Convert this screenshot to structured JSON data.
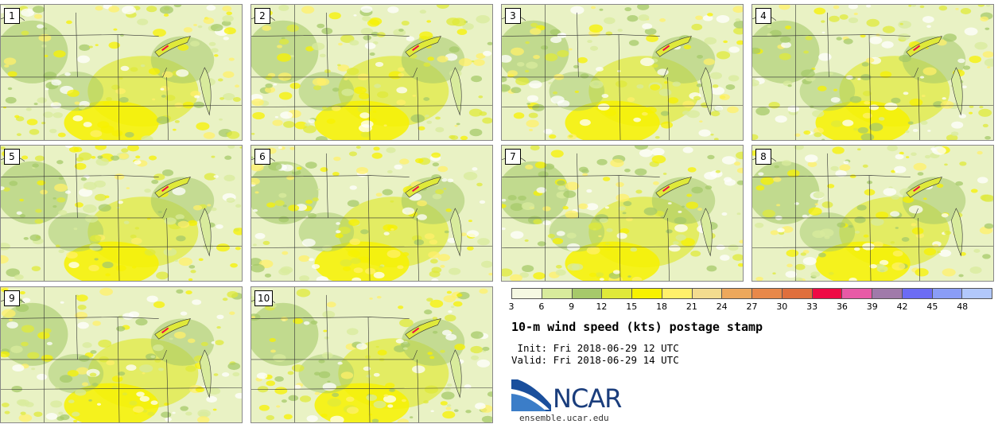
{
  "panels": [
    {
      "label": "1"
    },
    {
      "label": "2"
    },
    {
      "label": "3"
    },
    {
      "label": "4"
    },
    {
      "label": "5"
    },
    {
      "label": "6"
    },
    {
      "label": "7"
    },
    {
      "label": "8"
    },
    {
      "label": "9"
    },
    {
      "label": "10"
    }
  ],
  "legend": {
    "ticks": [
      "3",
      "6",
      "9",
      "12",
      "15",
      "18",
      "21",
      "24",
      "27",
      "30",
      "33",
      "36",
      "39",
      "42",
      "45",
      "48"
    ],
    "colors": [
      "#f5f8e2",
      "#d8eb9c",
      "#a6c96a",
      "#dfe93a",
      "#f7f200",
      "#fff06a",
      "#f3dc8f",
      "#eda85c",
      "#e8884a",
      "#df6f3d",
      "#ee0a45",
      "#e85aa6",
      "#a07aaa",
      "#6c6cf4",
      "#8a9df6",
      "#b2c8fb"
    ]
  },
  "title": "10-m wind speed (kts) postage stamp",
  "init_text": " Init: Fri 2018-06-29 12 UTC",
  "valid_text": "Valid: Fri 2018-06-29 14 UTC",
  "logo": {
    "name": "NCAR",
    "url": "ensemble.ucar.edu"
  }
}
